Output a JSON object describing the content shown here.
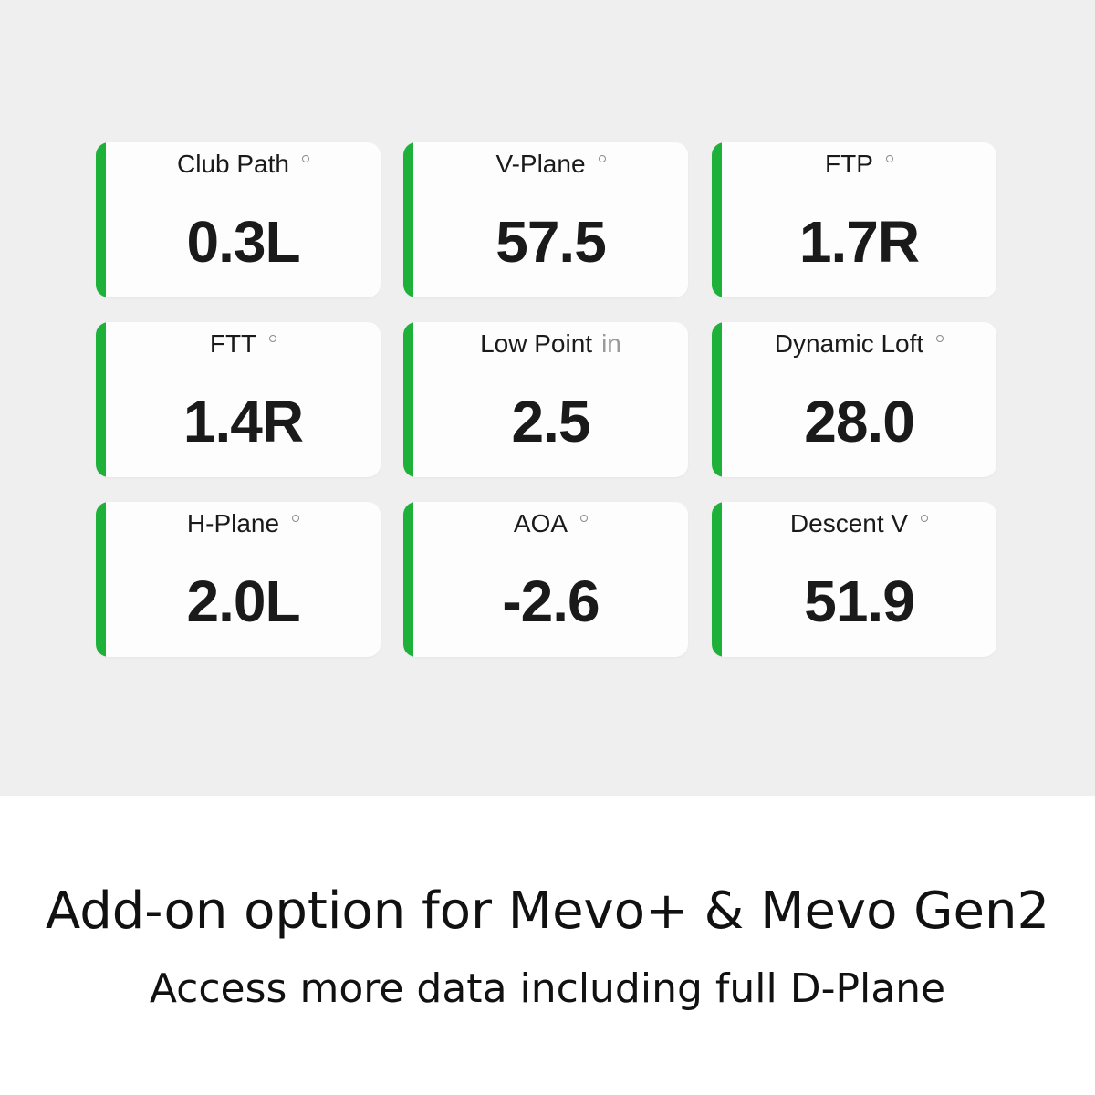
{
  "metrics": [
    {
      "label": "Club Path",
      "unit": "°",
      "value": "0.3L"
    },
    {
      "label": "V-Plane",
      "unit": "°",
      "value": "57.5"
    },
    {
      "label": "FTP",
      "unit": "°",
      "value": "1.7R"
    },
    {
      "label": "FTT",
      "unit": "°",
      "value": "1.4R"
    },
    {
      "label": "Low Point",
      "unit": "in",
      "value": "2.5"
    },
    {
      "label": "Dynamic Loft",
      "unit": "°",
      "value": "28.0"
    },
    {
      "label": "H-Plane",
      "unit": "°",
      "value": "2.0L"
    },
    {
      "label": "AOA",
      "unit": "°",
      "value": "-2.6"
    },
    {
      "label": "Descent V",
      "unit": "°",
      "value": "51.9"
    }
  ],
  "colors": {
    "accent": "#1db13a",
    "background": "#efefef"
  },
  "footer": {
    "headline": "Add-on option for Mevo+ & Mevo Gen2",
    "subheadline": "Access more data including full D-Plane"
  }
}
